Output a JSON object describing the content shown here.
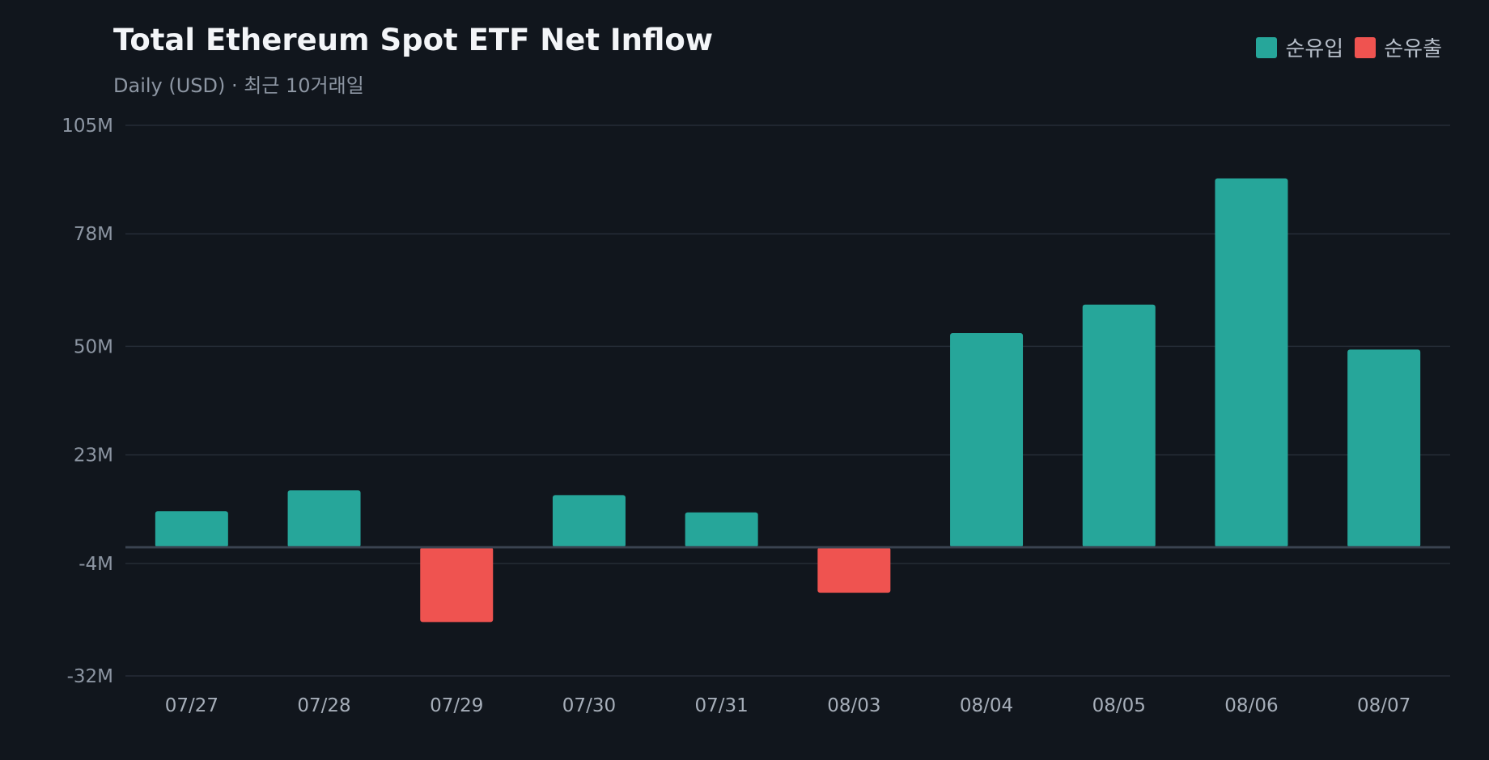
{
  "chart_data": {
    "type": "bar",
    "title": "Total Ethereum Spot ETF Net Inflow",
    "subtitle": "Daily (USD) · 최근 10거래일",
    "categories": [
      "07/27",
      "07/28",
      "07/29",
      "07/30",
      "07/31",
      "08/03",
      "08/04",
      "08/05",
      "08/06",
      "08/07"
    ],
    "values": [
      9,
      14.2,
      -18.6,
      13,
      8.7,
      -11.3,
      53.3,
      60.4,
      91.8,
      49.2
    ],
    "ylim": [
      -32,
      105
    ],
    "yticks": [
      105,
      78,
      50,
      23,
      -4,
      -32
    ],
    "ytick_labels": [
      "105M",
      "78M",
      "50M",
      "23M",
      "-4M",
      "-32M"
    ],
    "grid": true,
    "legend": {
      "placement": "top-right",
      "items": [
        {
          "label": "순유입",
          "color": "#26a69a"
        },
        {
          "label": "순유출",
          "color": "#ef5350"
        }
      ]
    },
    "colors": {
      "inflow": "#26a69a",
      "outflow": "#ef5350",
      "grid": "#252c36",
      "zero_line": "#3a4350",
      "background": "#11161d"
    }
  }
}
